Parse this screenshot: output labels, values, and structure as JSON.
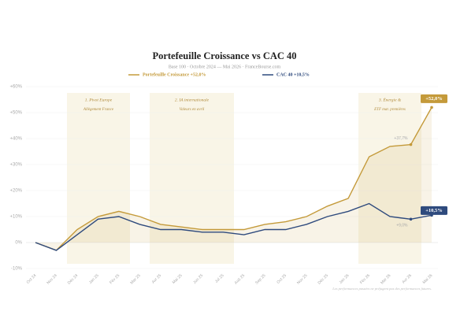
{
  "chart_data": {
    "type": "line",
    "title": "Portefeuille Croissance vs CAC 40",
    "subtitle": "Base 100 · Octobre 2024 — Mai 2026 · FranceBourse.com",
    "categories": [
      "Oct 24",
      "Nov 24",
      "Déc 24",
      "Jan 25",
      "Fév 25",
      "Mar 25",
      "Avr 25",
      "Mai 25",
      "Jun 25",
      "Jul 25",
      "Aoû 25",
      "Sep 25",
      "Oct 25",
      "Nov 25",
      "Déc 25",
      "Jan 26",
      "Fév 26",
      "Mar 26",
      "Avr 26",
      "Mai 26"
    ],
    "series": [
      {
        "name": "Portefeuille Croissance +52,0%",
        "color": "#c49a3a",
        "values": [
          0,
          -3,
          5,
          10,
          12,
          10,
          7,
          6,
          5,
          5,
          5,
          7,
          8,
          10,
          14,
          17,
          33,
          37,
          37.7,
          52
        ],
        "value_labels": [
          null,
          null,
          null,
          null,
          null,
          null,
          null,
          null,
          null,
          null,
          null,
          null,
          null,
          null,
          null,
          null,
          null,
          null,
          "+37,7%",
          "+52,0%"
        ]
      },
      {
        "name": "CAC 40 +10,5%",
        "color": "#2e4a7d",
        "values": [
          0,
          -3,
          3,
          9,
          10,
          7,
          5,
          5,
          4,
          4,
          3,
          5,
          5,
          7,
          10,
          12,
          15,
          10,
          9,
          10.5
        ],
        "value_labels": [
          null,
          null,
          null,
          null,
          null,
          null,
          null,
          null,
          null,
          null,
          null,
          null,
          null,
          null,
          null,
          null,
          null,
          null,
          "+9,0%",
          "+10,5%"
        ]
      }
    ],
    "ylim": [
      -10,
      60
    ],
    "yticks": [
      {
        "value": -10,
        "label": "-10%"
      },
      {
        "value": 0,
        "label": "0%"
      },
      {
        "value": 10,
        "label": "+10%"
      },
      {
        "value": 20,
        "label": "+20%"
      },
      {
        "value": 30,
        "label": "+30%"
      },
      {
        "value": 40,
        "label": "+40%"
      },
      {
        "value": 50,
        "label": "+50%"
      },
      {
        "value": 60,
        "label": "+60%"
      }
    ],
    "grid": true,
    "regions": [
      {
        "title": "1. Pivot Europe",
        "subtitle": "Allègement France"
      },
      {
        "title": "2. IA internationale",
        "subtitle": "Valeurs en avril"
      },
      {
        "title": "3. Énergie &",
        "subtitle": "ETF mat. premières"
      }
    ],
    "note": "Les performances passées ne préjugent pas des performances futures."
  }
}
